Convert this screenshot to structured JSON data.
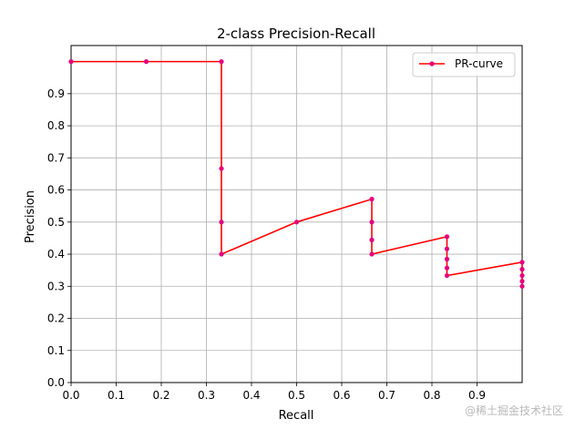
{
  "chart_data": {
    "type": "line",
    "title": "2-class Precision-Recall",
    "xlabel": "Recall",
    "ylabel": "Precision",
    "xlim": [
      0,
      1
    ],
    "ylim": [
      0,
      1.05
    ],
    "xticks": [
      0.0,
      0.1,
      0.2,
      0.3,
      0.4,
      0.5,
      0.6,
      0.7,
      0.8,
      0.9
    ],
    "yticks": [
      0.0,
      0.1,
      0.2,
      0.3,
      0.4,
      0.5,
      0.6,
      0.7,
      0.8,
      0.9
    ],
    "grid": true,
    "legend": {
      "placement": "top-right",
      "entries": [
        "PR-curve"
      ]
    },
    "series": [
      {
        "name": "PR-curve",
        "line_color": "#ff0000",
        "marker_color": "#e6007e",
        "points": [
          [
            0.0,
            1.0
          ],
          [
            0.1667,
            1.0
          ],
          [
            0.3333,
            1.0
          ],
          [
            0.3333,
            0.6667
          ],
          [
            0.3333,
            0.5
          ],
          [
            0.3333,
            0.4
          ],
          [
            0.5,
            0.5
          ],
          [
            0.6667,
            0.5714
          ],
          [
            0.6667,
            0.5
          ],
          [
            0.6667,
            0.4444
          ],
          [
            0.6667,
            0.4
          ],
          [
            0.8333,
            0.4545
          ],
          [
            0.8333,
            0.4167
          ],
          [
            0.8333,
            0.3846
          ],
          [
            0.8333,
            0.3571
          ],
          [
            0.8333,
            0.3333
          ],
          [
            1.0,
            0.375
          ],
          [
            1.0,
            0.3529
          ],
          [
            1.0,
            0.3333
          ],
          [
            1.0,
            0.3158
          ],
          [
            1.0,
            0.3
          ]
        ]
      }
    ]
  },
  "watermark": "@稀土掘金技术社区"
}
